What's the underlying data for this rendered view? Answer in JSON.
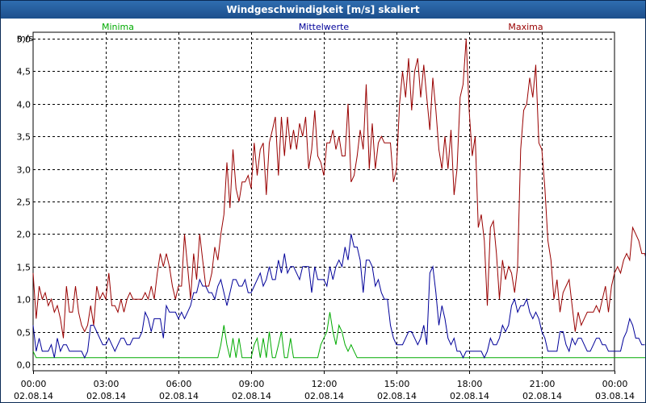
{
  "window": {
    "title": "Windgeschwindigkeit [m/s] skaliert"
  },
  "chart_data": {
    "type": "line",
    "title": "Windgeschwindigkeit [m/s] skaliert",
    "ylabel": "m/s",
    "xlabel": "",
    "ylim": [
      -0.1,
      5.1
    ],
    "xlim_hours": [
      0,
      24
    ],
    "grid": true,
    "y_ticks": [
      0.0,
      0.5,
      1.0,
      1.5,
      2.0,
      2.5,
      3.0,
      3.5,
      4.0,
      4.5,
      5.0
    ],
    "y_tick_labels": [
      "0,0",
      "0,5",
      "1,0",
      "1,5",
      "2,0",
      "2,5",
      "3,0",
      "3,5",
      "4,0",
      "4,5",
      "5,0"
    ],
    "x_ticks": [
      {
        "hour": 0,
        "time": "00:00",
        "date": "02.08.14"
      },
      {
        "hour": 3,
        "time": "03:00",
        "date": "02.08.14"
      },
      {
        "hour": 6,
        "time": "06:00",
        "date": "02.08.14"
      },
      {
        "hour": 9,
        "time": "09:00",
        "date": "02.08.14"
      },
      {
        "hour": 12,
        "time": "12:00",
        "date": "02.08.14"
      },
      {
        "hour": 15,
        "time": "15:00",
        "date": "02.08.14"
      },
      {
        "hour": 18,
        "time": "18:00",
        "date": "02.08.14"
      },
      {
        "hour": 21,
        "time": "21:00",
        "date": "02.08.14"
      },
      {
        "hour": 24,
        "time": "00:00",
        "date": "03.08.14"
      }
    ],
    "x_step_hours": 0.125,
    "series": [
      {
        "name": "Minima",
        "color": "#00aa00",
        "legend_position": "left",
        "values": [
          0.2,
          0.1,
          0.1,
          0.1,
          0.1,
          0.1,
          0.1,
          0.1,
          0.1,
          0.1,
          0.1,
          0.1,
          0.1,
          0.1,
          0.1,
          0.1,
          0.1,
          0.1,
          0.1,
          0.1,
          0.1,
          0.1,
          0.1,
          0.1,
          0.1,
          0.1,
          0.1,
          0.1,
          0.1,
          0.1,
          0.1,
          0.1,
          0.1,
          0.1,
          0.1,
          0.1,
          0.1,
          0.1,
          0.1,
          0.1,
          0.1,
          0.1,
          0.1,
          0.1,
          0.1,
          0.1,
          0.1,
          0.1,
          0.1,
          0.1,
          0.1,
          0.1,
          0.1,
          0.1,
          0.1,
          0.1,
          0.1,
          0.1,
          0.1,
          0.1,
          0.1,
          0.1,
          0.1,
          0.1,
          0.1,
          0.1,
          0.1,
          0.1,
          0.1,
          0.1,
          0.1,
          0.1,
          0.1,
          0.1,
          0.1,
          0.1,
          0.1,
          0.1,
          0.1,
          0.1,
          0.1,
          0.1,
          0.1,
          0.1,
          0.1,
          0.1,
          0.1,
          0.1,
          0.1,
          0.1,
          0.1,
          0.1,
          0.1,
          0.1,
          0.1,
          0.1,
          0.1,
          0.1,
          0.1,
          0.1,
          0.1,
          0.1,
          0.1,
          0.1,
          0.1,
          0.1,
          0.1,
          0.1,
          0.1,
          0.1,
          0.1,
          0.1,
          0.1,
          0.1,
          0.1,
          0.1,
          0.1,
          0.1,
          0.1,
          0.1,
          0.1,
          0.1,
          0.1,
          0.1,
          0.1,
          0.1,
          0.1,
          0.1,
          0.1,
          0.1,
          0.1,
          0.1,
          0.1,
          0.1,
          0.1,
          0.1,
          0.1,
          0.1,
          0.1,
          0.1,
          0.1,
          0.1,
          0.1,
          0.1,
          0.1,
          0.1,
          0.1,
          0.1,
          0.1,
          0.1,
          0.1,
          0.1,
          0.1,
          0.1,
          0.1,
          0.1,
          0.1,
          0.1,
          0.1,
          0.1,
          0.1,
          0.1,
          0.1,
          0.1,
          0.1,
          0.1,
          0.1,
          0.1,
          0.1,
          0.1,
          0.1,
          0.1,
          0.1,
          0.1,
          0.1,
          0.1,
          0.1,
          0.1,
          0.1,
          0.1,
          0.1,
          0.1,
          0.1,
          0.1,
          0.1,
          0.1,
          0.1,
          0.1,
          0.1,
          0.1,
          0.1,
          0.1,
          0.1,
          0.1,
          0.1,
          0.1,
          0.1,
          0.1,
          0.1,
          0.1,
          0.1,
          0.1,
          0.1,
          0.1,
          0.1,
          0.1,
          0.1,
          0.1,
          0.1,
          0.1,
          0.1,
          0.1,
          0.1
        ],
        "overrides": [
          [
            62,
            0.3
          ],
          [
            63,
            0.6
          ],
          [
            64,
            0.3
          ],
          [
            65,
            0.1
          ],
          [
            66,
            0.4
          ],
          [
            67,
            0.1
          ],
          [
            68,
            0.4
          ],
          [
            69,
            0.1
          ],
          [
            70,
            0.1
          ],
          [
            73,
            0.3
          ],
          [
            74,
            0.4
          ],
          [
            75,
            0.1
          ],
          [
            76,
            0.4
          ],
          [
            77,
            0.1
          ],
          [
            78,
            0.5
          ],
          [
            79,
            0.1
          ],
          [
            80,
            0.1
          ],
          [
            81,
            0.3
          ],
          [
            82,
            0.5
          ],
          [
            83,
            0.1
          ],
          [
            84,
            0.1
          ],
          [
            85,
            0.4
          ],
          [
            86,
            0.1
          ],
          [
            89,
            0.1
          ],
          [
            90,
            0.1
          ],
          [
            91,
            0.1
          ],
          [
            92,
            0.1
          ],
          [
            93,
            0.1
          ],
          [
            94,
            0.1
          ],
          [
            95,
            0.3
          ],
          [
            96,
            0.4
          ],
          [
            97,
            0.5
          ],
          [
            98,
            0.8
          ],
          [
            99,
            0.5
          ],
          [
            100,
            0.3
          ],
          [
            101,
            0.6
          ],
          [
            102,
            0.5
          ],
          [
            103,
            0.3
          ],
          [
            104,
            0.2
          ],
          [
            105,
            0.3
          ],
          [
            106,
            0.2
          ],
          [
            107,
            0.1
          ]
        ]
      },
      {
        "name": "Mittelwerte",
        "color": "#000099",
        "legend_position": "center",
        "values": [
          0.6,
          0.2,
          0.4,
          0.2,
          0.2,
          0.2,
          0.3,
          0.1,
          0.4,
          0.2,
          0.3,
          0.3,
          0.2,
          0.2,
          0.2,
          0.2,
          0.2,
          0.1,
          0.2,
          0.6,
          0.6,
          0.5,
          0.4,
          0.3,
          0.3,
          0.4,
          0.3,
          0.2,
          0.3,
          0.4,
          0.4,
          0.3,
          0.3,
          0.4,
          0.4,
          0.4,
          0.5,
          0.8,
          0.7,
          0.5,
          0.7,
          0.7,
          0.7,
          0.4,
          0.9,
          0.8,
          0.8,
          0.8,
          0.7,
          0.8,
          0.7,
          0.8,
          0.9,
          1.1,
          1.1,
          1.3,
          1.2,
          1.2,
          1.1,
          1.1,
          1.0,
          1.2,
          1.3,
          1.1,
          0.9,
          1.1,
          1.3,
          1.3,
          1.2,
          1.2,
          1.3,
          1.1,
          1.1,
          1.2,
          1.3,
          1.4,
          1.2,
          1.3,
          1.5,
          1.3,
          1.3,
          1.6,
          1.4,
          1.7,
          1.4,
          1.5,
          1.5,
          1.4,
          1.3,
          1.5,
          1.5,
          1.5,
          1.1,
          1.5,
          1.3,
          1.3,
          1.3,
          1.2,
          1.5,
          1.3,
          1.5,
          1.6,
          1.5,
          1.8,
          1.6,
          2.0,
          1.8,
          1.8,
          1.6,
          1.1,
          1.6,
          1.6,
          1.5,
          1.2,
          1.3,
          1.1,
          1.0,
          1.0,
          0.6,
          0.4,
          0.3,
          0.3,
          0.3,
          0.4,
          0.5,
          0.5,
          0.4,
          0.3,
          0.4,
          0.6,
          0.3,
          1.4,
          1.5,
          1.1,
          0.6,
          0.9,
          0.7,
          0.4,
          0.3,
          0.4,
          0.2,
          0.2,
          0.1,
          0.2,
          0.2,
          0.2,
          0.2,
          0.2,
          0.2,
          0.1,
          0.2,
          0.4,
          0.3,
          0.3,
          0.4,
          0.6,
          0.5,
          0.6,
          0.9,
          1.0,
          0.8,
          0.9,
          0.9,
          1.0,
          0.8,
          0.7,
          0.8,
          0.7,
          0.5,
          0.4,
          0.2,
          0.2,
          0.2,
          0.2,
          0.5,
          0.5,
          0.3,
          0.2,
          0.4,
          0.3,
          0.4,
          0.4,
          0.3,
          0.2,
          0.2,
          0.3,
          0.4,
          0.4,
          0.3,
          0.3,
          0.2,
          0.2,
          0.2,
          0.2,
          0.2,
          0.4,
          0.5,
          0.7,
          0.6,
          0.4,
          0.4,
          0.3,
          0.3
        ]
      },
      {
        "name": "Maxima",
        "color": "#990000",
        "legend_position": "right",
        "values": [
          1.4,
          0.7,
          1.2,
          1.0,
          1.1,
          0.9,
          1.0,
          0.8,
          0.9,
          0.7,
          0.4,
          1.2,
          0.8,
          0.8,
          1.2,
          0.8,
          0.6,
          0.5,
          0.6,
          0.9,
          0.6,
          1.2,
          1.0,
          1.1,
          1.0,
          1.4,
          0.9,
          0.9,
          0.8,
          1.0,
          0.8,
          1.0,
          1.1,
          1.0,
          1.0,
          1.0,
          1.0,
          1.1,
          1.0,
          1.2,
          1.0,
          1.4,
          1.7,
          1.5,
          1.7,
          1.5,
          1.2,
          1.0,
          1.2,
          1.2,
          2.0,
          1.5,
          1.0,
          1.7,
          1.3,
          2.0,
          1.6,
          1.2,
          1.2,
          1.4,
          1.8,
          1.6,
          2.0,
          2.3,
          3.1,
          2.4,
          3.3,
          2.7,
          2.5,
          2.8,
          2.8,
          2.9,
          2.7,
          3.4,
          2.9,
          3.3,
          3.4,
          2.6,
          3.4,
          3.6,
          3.8,
          2.9,
          3.8,
          3.2,
          3.8,
          3.3,
          3.6,
          3.3,
          3.7,
          3.5,
          3.8,
          3.0,
          3.3,
          3.9,
          3.2,
          3.1,
          2.9,
          3.4,
          3.4,
          3.6,
          3.3,
          3.5,
          3.2,
          3.2,
          4.0,
          2.8,
          2.9,
          3.2,
          3.6,
          3.3,
          4.3,
          3.0,
          3.7,
          3.0,
          3.4,
          3.5,
          3.4,
          3.4,
          3.4,
          2.8,
          3.0,
          4.0,
          4.5,
          4.1,
          4.7,
          3.9,
          4.5,
          4.7,
          4.1,
          4.6,
          4.1,
          3.6,
          4.4,
          3.9,
          3.3,
          3.0,
          3.5,
          3.0,
          3.6,
          2.6,
          3.0,
          4.1,
          4.3,
          5.0,
          3.9,
          3.2,
          3.5,
          2.1,
          2.3,
          1.9,
          0.9,
          2.1,
          2.2,
          1.7,
          1.0,
          1.6,
          1.3,
          1.5,
          1.4,
          1.1,
          1.5,
          3.3,
          3.9,
          4.0,
          4.4,
          4.1,
          4.6,
          3.4,
          3.3,
          2.7,
          1.9,
          1.6,
          1.0,
          1.3,
          0.8,
          1.1,
          1.2,
          1.3,
          0.9,
          0.5,
          0.8,
          0.6,
          0.7,
          0.8,
          0.8,
          0.8,
          0.9,
          0.8,
          1.0,
          1.2,
          0.8,
          1.2,
          1.4,
          1.5,
          1.4,
          1.6,
          1.7,
          1.6,
          2.1,
          2.0,
          1.9,
          1.7,
          1.7,
          1.5,
          1.2,
          1.0,
          0.8,
          0.8,
          1.2,
          1.0,
          0.9,
          1.3,
          1.0,
          1.0,
          1.2,
          1.0,
          1.0,
          0.8,
          1.1,
          0.8,
          0.7,
          1.3,
          0.9,
          1.2,
          1.0,
          1.2,
          1.0,
          0.7,
          1.1,
          1.0,
          1.2,
          1.0,
          1.0,
          1.0,
          1.5,
          1.4,
          1.1,
          1.0,
          1.1,
          1.0,
          1.0
        ]
      }
    ]
  }
}
